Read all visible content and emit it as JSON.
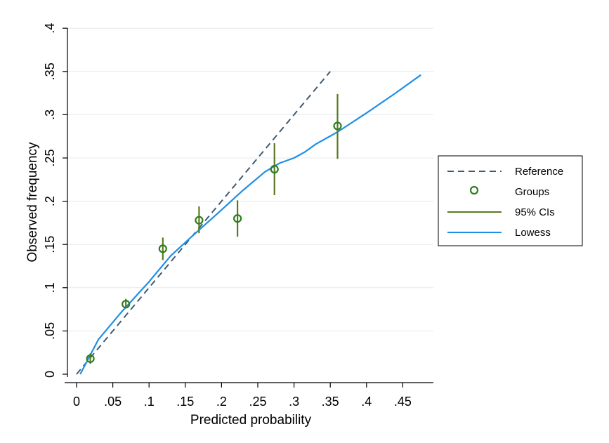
{
  "chart_data": {
    "type": "line",
    "title": "",
    "xlabel": "Predicted probability",
    "ylabel": "Observed frequency",
    "xlim": [
      0,
      0.48
    ],
    "ylim": [
      0,
      0.4
    ],
    "x_ticks": [
      0,
      0.05,
      0.1,
      0.15,
      0.2,
      0.25,
      0.3,
      0.35,
      0.4,
      0.45
    ],
    "x_tick_labels": [
      "0",
      ".05",
      ".1",
      ".15",
      ".2",
      ".25",
      ".3",
      ".35",
      ".4",
      ".45"
    ],
    "y_ticks": [
      0,
      0.05,
      0.1,
      0.15,
      0.2,
      0.25,
      0.3,
      0.35,
      0.4
    ],
    "y_tick_labels": [
      "0",
      ".05",
      ".1",
      ".15",
      ".2",
      ".25",
      ".3",
      ".35",
      ".4"
    ],
    "grid": "horizontal",
    "legend_position": "right",
    "series": [
      {
        "name": "Reference",
        "kind": "dashed-line",
        "color": "#3d5a73",
        "x": [
          0,
          0.35
        ],
        "y": [
          0,
          0.35
        ]
      },
      {
        "name": "Groups",
        "kind": "hollow-marker",
        "color": "#2e7d1f",
        "x": [
          0.019,
          0.068,
          0.119,
          0.169,
          0.222,
          0.273,
          0.36
        ],
        "y": [
          0.018,
          0.081,
          0.145,
          0.178,
          0.18,
          0.237,
          0.287
        ]
      },
      {
        "name": "95% CIs",
        "kind": "errorbar",
        "color": "#5a7a1e",
        "x": [
          0.019,
          0.068,
          0.119,
          0.169,
          0.222,
          0.273,
          0.36
        ],
        "lower": [
          0.012,
          0.076,
          0.132,
          0.163,
          0.159,
          0.207,
          0.249
        ],
        "upper": [
          0.024,
          0.087,
          0.158,
          0.194,
          0.201,
          0.267,
          0.324
        ]
      },
      {
        "name": "Lowess",
        "kind": "line",
        "color": "#1f8fe5",
        "x": [
          0.005,
          0.03,
          0.06,
          0.1,
          0.13,
          0.16,
          0.2,
          0.23,
          0.26,
          0.28,
          0.3,
          0.315,
          0.33,
          0.36,
          0.4,
          0.44,
          0.475
        ],
        "y": [
          0,
          0.04,
          0.07,
          0.107,
          0.137,
          0.16,
          0.19,
          0.213,
          0.234,
          0.244,
          0.25,
          0.257,
          0.266,
          0.28,
          0.302,
          0.325,
          0.346
        ]
      }
    ]
  }
}
